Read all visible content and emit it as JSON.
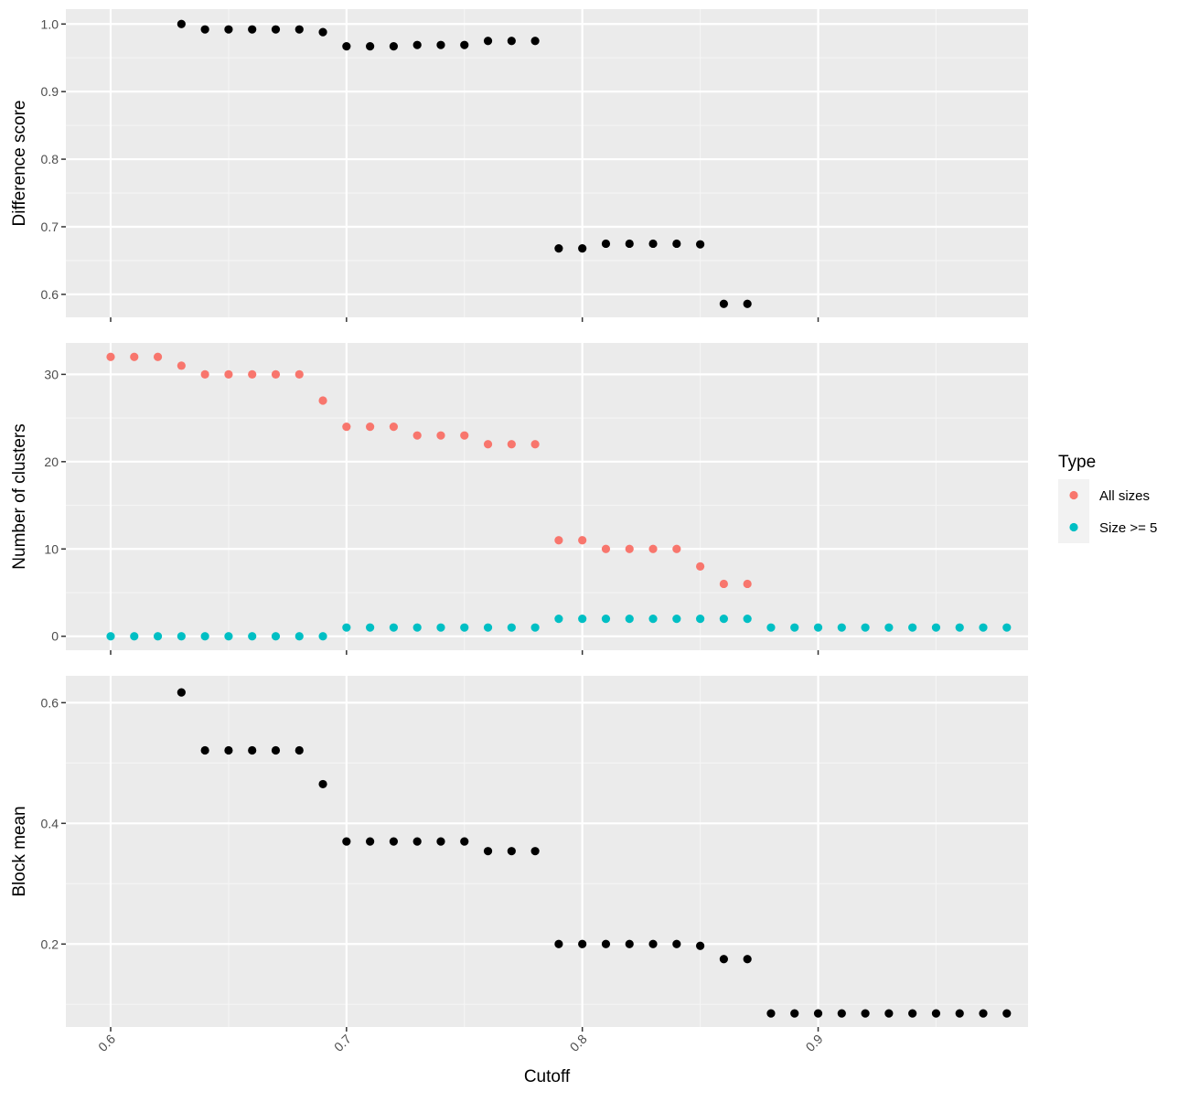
{
  "colors": {
    "panel_bg": "#EBEBEB",
    "grid_major": "#FFFFFF",
    "grid_minor": "#F5F5F5",
    "tick": "#333333",
    "point_default": "#000000",
    "all_sizes": "#F8766D",
    "size_ge_5": "#00BFC4",
    "legend_key_bg": "#F2F2F2"
  },
  "chart_data": {
    "type": "scatter",
    "xlabel": "Cutoff",
    "xlim": [
      0.581,
      0.989
    ],
    "x_ticks": [
      0.6,
      0.7,
      0.8,
      0.9
    ],
    "x_tick_labels": [
      "0.6",
      "0.7",
      "0.8",
      "0.9"
    ],
    "legend": {
      "title": "Type",
      "position": "right",
      "entries": [
        {
          "label": "All sizes",
          "color_key": "all_sizes"
        },
        {
          "label": "Size >= 5",
          "color_key": "size_ge_5"
        }
      ]
    },
    "panels": [
      {
        "ylabel": "Difference score",
        "ylim": [
          0.566,
          1.022
        ],
        "y_ticks": [
          0.6,
          0.7,
          0.8,
          0.9,
          1.0
        ],
        "y_tick_labels": [
          "0.6",
          "0.7",
          "0.8",
          "0.9",
          "1.0"
        ],
        "series": [
          {
            "color_key": "point_default",
            "x": [
              0.63,
              0.64,
              0.65,
              0.66,
              0.67,
              0.68,
              0.69,
              0.7,
              0.71,
              0.72,
              0.73,
              0.74,
              0.75,
              0.76,
              0.77,
              0.78,
              0.79,
              0.8,
              0.81,
              0.82,
              0.83,
              0.84,
              0.85,
              0.86,
              0.87
            ],
            "y": [
              1.0,
              0.992,
              0.992,
              0.992,
              0.992,
              0.992,
              0.988,
              0.967,
              0.967,
              0.967,
              0.969,
              0.969,
              0.969,
              0.975,
              0.975,
              0.975,
              0.668,
              0.668,
              0.675,
              0.675,
              0.675,
              0.675,
              0.674,
              0.586,
              0.586
            ]
          }
        ]
      },
      {
        "ylabel": "Number of clusters",
        "ylim": [
          -1.6,
          33.6
        ],
        "y_ticks": [
          0,
          10,
          20,
          30
        ],
        "y_tick_labels": [
          "0",
          "10",
          "20",
          "30"
        ],
        "series": [
          {
            "name": "All sizes",
            "color_key": "all_sizes",
            "x": [
              0.6,
              0.61,
              0.62,
              0.63,
              0.64,
              0.65,
              0.66,
              0.67,
              0.68,
              0.69,
              0.7,
              0.71,
              0.72,
              0.73,
              0.74,
              0.75,
              0.76,
              0.77,
              0.78,
              0.79,
              0.8,
              0.81,
              0.82,
              0.83,
              0.84,
              0.85,
              0.86,
              0.87
            ],
            "y": [
              32,
              32,
              32,
              31,
              30,
              30,
              30,
              30,
              30,
              27,
              24,
              24,
              24,
              23,
              23,
              23,
              22,
              22,
              22,
              11,
              11,
              10,
              10,
              10,
              10,
              8,
              6,
              6
            ]
          },
          {
            "name": "Size >= 5",
            "color_key": "size_ge_5",
            "x": [
              0.6,
              0.61,
              0.62,
              0.63,
              0.64,
              0.65,
              0.66,
              0.67,
              0.68,
              0.69,
              0.7,
              0.71,
              0.72,
              0.73,
              0.74,
              0.75,
              0.76,
              0.77,
              0.78,
              0.79,
              0.8,
              0.81,
              0.82,
              0.83,
              0.84,
              0.85,
              0.86,
              0.87,
              0.88,
              0.89,
              0.9,
              0.91,
              0.92,
              0.93,
              0.94,
              0.95,
              0.96,
              0.97,
              0.98
            ],
            "y": [
              0,
              0,
              0,
              0,
              0,
              0,
              0,
              0,
              0,
              0,
              1,
              1,
              1,
              1,
              1,
              1,
              1,
              1,
              1,
              2,
              2,
              2,
              2,
              2,
              2,
              2,
              2,
              2,
              1,
              1,
              1,
              1,
              1,
              1,
              1,
              1,
              1,
              1,
              1
            ]
          }
        ]
      },
      {
        "ylabel": "Block mean",
        "ylim": [
          0.0625,
          0.6445
        ],
        "y_ticks": [
          0.2,
          0.4,
          0.6
        ],
        "y_tick_labels": [
          "0.2",
          "0.4",
          "0.6"
        ],
        "series": [
          {
            "color_key": "point_default",
            "x": [
              0.63,
              0.64,
              0.65,
              0.66,
              0.67,
              0.68,
              0.69,
              0.7,
              0.71,
              0.72,
              0.73,
              0.74,
              0.75,
              0.76,
              0.77,
              0.78,
              0.79,
              0.8,
              0.81,
              0.82,
              0.83,
              0.84,
              0.85,
              0.86,
              0.87,
              0.88,
              0.89,
              0.9,
              0.91,
              0.92,
              0.93,
              0.94,
              0.95,
              0.96,
              0.97,
              0.98
            ],
            "y": [
              0.617,
              0.521,
              0.521,
              0.521,
              0.521,
              0.521,
              0.465,
              0.37,
              0.37,
              0.37,
              0.37,
              0.37,
              0.37,
              0.354,
              0.354,
              0.354,
              0.2,
              0.2,
              0.2,
              0.2,
              0.2,
              0.2,
              0.197,
              0.175,
              0.175,
              0.085,
              0.085,
              0.085,
              0.085,
              0.085,
              0.085,
              0.085,
              0.085,
              0.085,
              0.085,
              0.085
            ]
          }
        ]
      }
    ]
  }
}
